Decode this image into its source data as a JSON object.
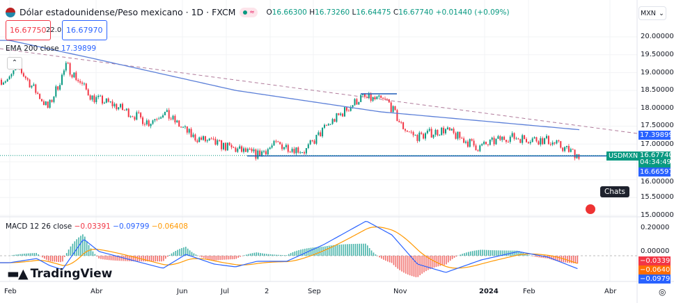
{
  "header": {
    "title": "Dólar estadounidense/Peso mexicano · 1D · FXCM",
    "open_label": "O",
    "open": "16.66300",
    "high_label": "H",
    "high": "16.73260",
    "low_label": "L",
    "low": "16.64475",
    "close_label": "C",
    "close": "16.67740",
    "change": "+0.01440 (+0.09%)"
  },
  "quote": {
    "sell": "16.67750",
    "spread": "22.0",
    "buy": "16.67970"
  },
  "ema": {
    "label": "EMA 200 close",
    "value": "17.39899"
  },
  "currency": "MXN",
  "macd": {
    "label": "MACD 12 26 close",
    "hist": "−0.03391",
    "macd": "−0.09799",
    "signal": "−0.06408"
  },
  "price_axis": [
    "20.00000",
    "19.50000",
    "19.00000",
    "18.50000",
    "18.00000",
    "17.50000",
    "17.00000",
    "16.50000",
    "16.00000",
    "15.50000",
    "15.00000"
  ],
  "macd_axis": [
    "0.20000",
    "0.00000"
  ],
  "labels": {
    "ema": "17.39899",
    "ticker": "USDMXN",
    "last": "16.67740",
    "countdown": "04:34:49",
    "support": "16.66597",
    "hist": "−0.03391",
    "signal": "−0.06408",
    "macd": "−0.09799"
  },
  "time_axis": [
    "Feb",
    "Abr",
    "Jun",
    "Jul",
    "2",
    "Sep",
    "Nov",
    "2024",
    "Feb",
    "Abr"
  ],
  "brand": "TradingView",
  "tooltip": "Chats",
  "colors": {
    "up": "#089981",
    "down": "#f23645",
    "ema": "#5b7fd8",
    "macd": "#2962ff",
    "signal": "#ff9800",
    "support": "#1e5bb8"
  },
  "chart_data": {
    "type": "candlestick",
    "symbol": "USDMXN",
    "ylim": [
      15,
      20
    ],
    "price_path": [
      [
        "2023-02-01",
        18.8
      ],
      [
        "2023-02-06",
        19.2
      ],
      [
        "2023-02-28",
        18.0
      ],
      [
        "2023-03-13",
        19.2
      ],
      [
        "2023-03-31",
        18.3
      ],
      [
        "2023-04-15",
        18.1
      ],
      [
        "2023-05-10",
        17.6
      ],
      [
        "2023-05-20",
        17.9
      ],
      [
        "2023-06-10",
        17.2
      ],
      [
        "2023-07-05",
        16.9
      ],
      [
        "2023-07-25",
        16.7
      ],
      [
        "2023-08-08",
        17.0
      ],
      [
        "2023-08-28",
        16.8
      ],
      [
        "2023-09-12",
        17.5
      ],
      [
        "2023-10-06",
        18.3
      ],
      [
        "2023-10-25",
        18.2
      ],
      [
        "2023-11-04",
        17.5
      ],
      [
        "2023-11-14",
        17.2
      ],
      [
        "2023-12-04",
        17.4
      ],
      [
        "2023-12-28",
        16.9
      ],
      [
        "2024-01-17",
        17.2
      ],
      [
        "2024-02-15",
        17.1
      ],
      [
        "2024-03-08",
        16.6774
      ]
    ],
    "ema200_path": [
      [
        "2023-02-01",
        19.9
      ],
      [
        "2023-03-31",
        19.4
      ],
      [
        "2023-07-10",
        18.5
      ],
      [
        "2023-10-20",
        17.9
      ],
      [
        "2024-03-08",
        17.4
      ]
    ],
    "macd_path": [
      [
        "2023-02-01",
        -0.05
      ],
      [
        "2023-02-20",
        -0.02
      ],
      [
        "2023-03-01",
        -0.07
      ],
      [
        "2023-03-10",
        -0.1
      ],
      [
        "2023-03-25",
        0.12
      ],
      [
        "2023-04-05",
        0.03
      ],
      [
        "2023-05-01",
        -0.04
      ],
      [
        "2023-05-20",
        -0.09
      ],
      [
        "2023-06-05",
        0.01
      ],
      [
        "2023-06-25",
        -0.06
      ],
      [
        "2023-07-10",
        -0.08
      ],
      [
        "2023-07-25",
        -0.04
      ],
      [
        "2023-08-15",
        -0.04
      ],
      [
        "2023-08-28",
        0.02
      ],
      [
        "2023-09-10",
        0.08
      ],
      [
        "2023-10-10",
        0.25
      ],
      [
        "2023-10-28",
        0.15
      ],
      [
        "2023-11-15",
        -0.06
      ],
      [
        "2023-12-05",
        -0.12
      ],
      [
        "2023-12-30",
        -0.03
      ],
      [
        "2024-01-25",
        0.03
      ],
      [
        "2024-02-15",
        -0.01
      ],
      [
        "2024-03-08",
        -0.098
      ]
    ],
    "support": 16.66597
  }
}
